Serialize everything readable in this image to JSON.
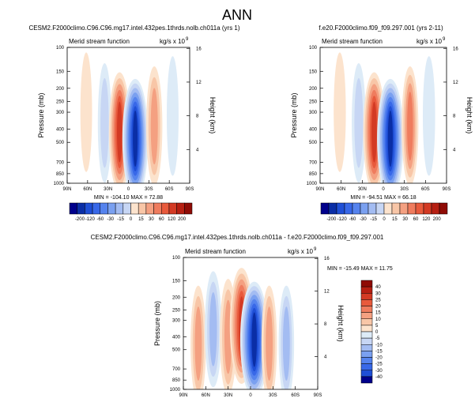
{
  "title": "ANN",
  "colors": {
    "neg": [
      "#00008b",
      "#0a2ea6",
      "#1f4fd6",
      "#3868e8",
      "#5583ee",
      "#7aa0f0",
      "#a3bcf2",
      "#c7d6f4",
      "#ddebf7"
    ],
    "pos": [
      "#fce3cd",
      "#f8c6a7",
      "#f4a081",
      "#ef7c5e",
      "#e85a3c",
      "#d33a24",
      "#b61f12",
      "#8f0b05"
    ],
    "border": "#000000"
  },
  "chart_data": [
    {
      "type": "contour",
      "title": "CESM2.F2000climo.C96.C96.mg17.intel.432pes.1thrds.nolb.ch011a (yrs 1)",
      "left_label": "Merid stream function",
      "right_label": "kg/s x 10",
      "right_label_exp": "9",
      "ylabel": "Pressure (mb)",
      "ylabel_right": "Height (km)",
      "x_ticks": [
        "90N",
        "60N",
        "30N",
        "0",
        "30S",
        "60S",
        "90S"
      ],
      "y_ticks": [
        "100",
        "150",
        "200",
        "250",
        "300",
        "400",
        "500",
        "700",
        "850",
        "1000"
      ],
      "y_ticks_right": [
        "16",
        "12",
        "8",
        "4"
      ],
      "stats": {
        "min_label": "MIN = -104.10",
        "max_label": "MAX = 72.88"
      },
      "cells": [
        {
          "lat": 62,
          "p": 300,
          "sign": 1,
          "peak": 5
        },
        {
          "lat": 35,
          "p": 360,
          "sign": -1,
          "peak": 18
        },
        {
          "lat": 13,
          "p": 420,
          "sign": 1,
          "peak": 70
        },
        {
          "lat": -10,
          "p": 470,
          "sign": -1,
          "peak": 100
        },
        {
          "lat": -38,
          "p": 380,
          "sign": 1,
          "peak": 35
        },
        {
          "lat": -65,
          "p": 320,
          "sign": -1,
          "peak": 6
        }
      ]
    },
    {
      "type": "contour",
      "title": "f.e20.F2000climo.f09_f09.297.001 (yrs 2-11)",
      "left_label": "Merid stream function",
      "right_label": "kg/s x 10",
      "right_label_exp": "9",
      "ylabel": "Pressure (mb)",
      "ylabel_right": "Height (km)",
      "x_ticks": [
        "90N",
        "60N",
        "30N",
        "0",
        "30S",
        "60S",
        "90S"
      ],
      "y_ticks": [
        "100",
        "150",
        "200",
        "250",
        "300",
        "400",
        "500",
        "700",
        "850",
        "1000"
      ],
      "y_ticks_right": [
        "16",
        "12",
        "8",
        "4"
      ],
      "stats": {
        "min_label": "MIN = -94.51",
        "max_label": "MAX = 66.18"
      },
      "cells": [
        {
          "lat": 62,
          "p": 300,
          "sign": 1,
          "peak": 5
        },
        {
          "lat": 35,
          "p": 360,
          "sign": -1,
          "peak": 16
        },
        {
          "lat": 13,
          "p": 420,
          "sign": 1,
          "peak": 64
        },
        {
          "lat": -10,
          "p": 470,
          "sign": -1,
          "peak": 92
        },
        {
          "lat": -38,
          "p": 380,
          "sign": 1,
          "peak": 33
        },
        {
          "lat": -65,
          "p": 320,
          "sign": -1,
          "peak": 6
        }
      ]
    },
    {
      "type": "contour",
      "title": "CESM2.F2000climo.C96.C96.mg17.intel.432pes.1thrds.nolb.ch011a - f.e20.F2000climo.f09_f09.297.001",
      "left_label": "Merid stream function",
      "right_label": "kg/s x 10",
      "right_label_exp": "9",
      "ylabel": "Pressure (mb)",
      "ylabel_right": "Height (km)",
      "x_ticks": [
        "90N",
        "60N",
        "30N",
        "0",
        "30S",
        "60S",
        "90S"
      ],
      "y_ticks": [
        "100",
        "150",
        "200",
        "250",
        "300",
        "400",
        "500",
        "700",
        "850",
        "1000"
      ],
      "y_ticks_right": [
        "16",
        "12",
        "8",
        "4"
      ],
      "stats": {
        "min_label": "MIN = -15.49",
        "max_label": "MAX = 11.75"
      },
      "cells": [
        {
          "lat": 70,
          "p": 450,
          "sign": 1,
          "peak": 3
        },
        {
          "lat": 50,
          "p": 350,
          "sign": -1,
          "peak": 4
        },
        {
          "lat": 30,
          "p": 400,
          "sign": 1,
          "peak": 4
        },
        {
          "lat": 12,
          "p": 330,
          "sign": 1,
          "peak": 10
        },
        {
          "lat": -5,
          "p": 420,
          "sign": -1,
          "peak": 14
        },
        {
          "lat": -25,
          "p": 450,
          "sign": 1,
          "peak": 3
        },
        {
          "lat": -48,
          "p": 450,
          "sign": -1,
          "peak": 3
        }
      ]
    }
  ],
  "colorbars": [
    {
      "orientation": "horizontal",
      "labels": [
        "-200",
        "-120",
        "-60",
        "-30",
        "-15",
        "0",
        "15",
        "30",
        "60",
        "120",
        "200"
      ],
      "colors": [
        "#00008b",
        "#0a2ea6",
        "#1f4fd6",
        "#3868e8",
        "#5583ee",
        "#7aa0f0",
        "#a3bcf2",
        "#c7d6f4",
        "#fce3cd",
        "#f8c6a7",
        "#f4a081",
        "#ef7c5e",
        "#e85a3c",
        "#d33a24",
        "#b61f12",
        "#8f0b05"
      ]
    },
    {
      "orientation": "horizontal",
      "labels": [
        "-200",
        "-120",
        "-60",
        "-30",
        "-15",
        "0",
        "15",
        "30",
        "60",
        "120",
        "200"
      ],
      "colors": [
        "#00008b",
        "#0a2ea6",
        "#1f4fd6",
        "#3868e8",
        "#5583ee",
        "#7aa0f0",
        "#a3bcf2",
        "#c7d6f4",
        "#fce3cd",
        "#f8c6a7",
        "#f4a081",
        "#ef7c5e",
        "#e85a3c",
        "#d33a24",
        "#b61f12",
        "#8f0b05"
      ]
    },
    {
      "orientation": "vertical",
      "labels": [
        "40",
        "30",
        "25",
        "20",
        "15",
        "10",
        "5",
        "0",
        "-5",
        "-10",
        "-15",
        "-20",
        "-25",
        "-30",
        "-40"
      ],
      "colors": [
        "#8f0b05",
        "#b61f12",
        "#d33a24",
        "#e85a3c",
        "#ef7c5e",
        "#f4a081",
        "#f8c6a7",
        "#fce3cd",
        "#ddebf7",
        "#c7d6f4",
        "#a3bcf2",
        "#7aa0f0",
        "#5583ee",
        "#3868e8",
        "#1f4fd6",
        "#00008b"
      ]
    }
  ]
}
